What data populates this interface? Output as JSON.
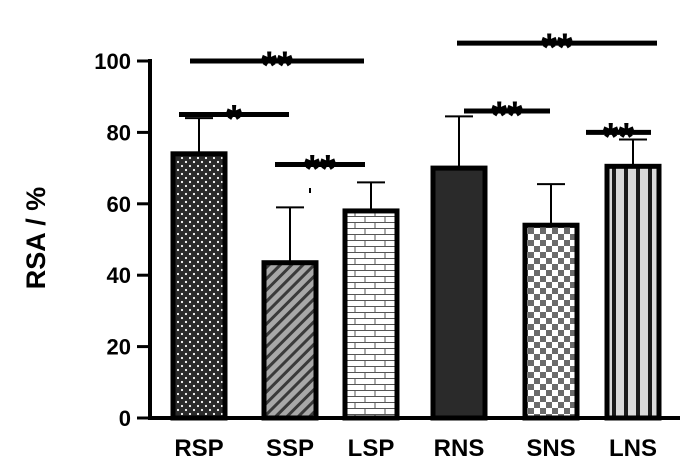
{
  "chart_data": {
    "type": "bar",
    "ylabel": "RSA / %",
    "xlabel": "",
    "ylim": [
      0,
      100
    ],
    "yticks": [
      0,
      20,
      40,
      60,
      80,
      100
    ],
    "categories": [
      "RSP",
      "SSP",
      "LSP",
      "RNS",
      "SNS",
      "LNS"
    ],
    "values": [
      74,
      43.5,
      58,
      70,
      54,
      70.5
    ],
    "errors": [
      10,
      15.5,
      8,
      14.5,
      11.5,
      7.5
    ],
    "patterns": [
      "dots-dark",
      "diagonal-hatch",
      "brick",
      "solid-dark",
      "checkerboard",
      "vertical-stripes"
    ],
    "colors": {
      "outline": "#000000",
      "dark_fill": "#2a2a2a",
      "hatch_fill": "#9a9a9a",
      "light_fill": "#d9d9d9"
    },
    "significance": [
      {
        "from": "RSP",
        "to": "LSP",
        "label": "**",
        "y": 100
      },
      {
        "from": "RSP",
        "to": "SSP",
        "label": "*",
        "y": 85
      },
      {
        "from": "SSP",
        "to": "LSP",
        "label": "**",
        "y": 71
      },
      {
        "from": "RNS",
        "to": "LNS",
        "label": "**",
        "y": 105
      },
      {
        "from": "RNS",
        "to": "SNS",
        "label": "**",
        "y": 86
      },
      {
        "from": "LNS",
        "to": "LNS",
        "label": "**",
        "y": 80
      }
    ],
    "grid": false,
    "legend": "none"
  }
}
